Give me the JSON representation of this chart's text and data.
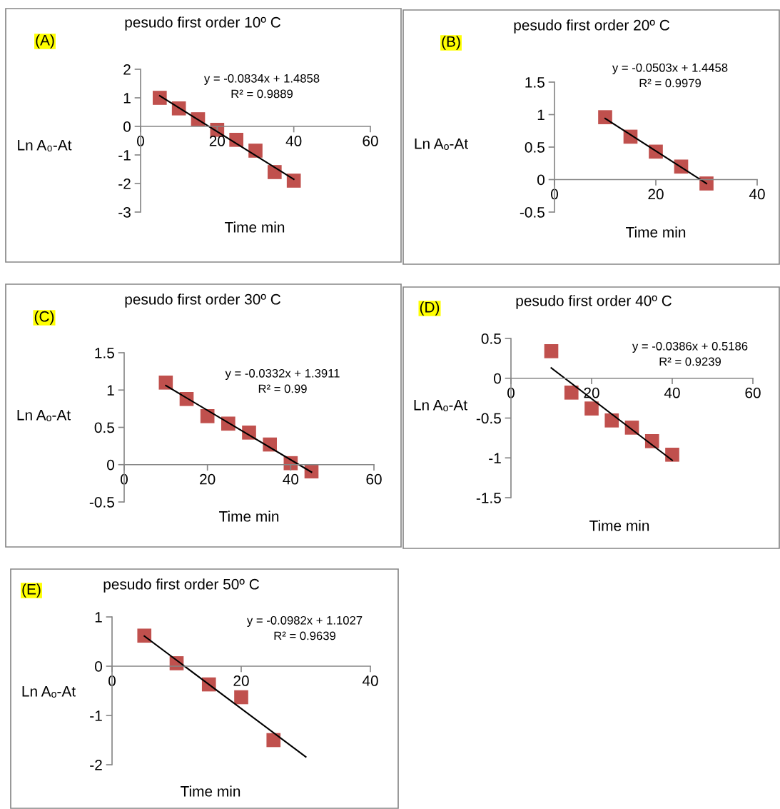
{
  "chart_data": [
    {
      "type": "scatter",
      "title": "pesudo first order 10º C",
      "xlabel": "Time min",
      "ylabel": "Ln A₀-At",
      "annotations": [
        "(A)",
        "y = -0.0834x + 1.4858\nR² = 0.9889"
      ],
      "xlim": [
        0,
        60
      ],
      "ylim": [
        -3,
        2
      ],
      "xticks": [
        0,
        20,
        40,
        60
      ],
      "yticks": [
        -3,
        -2,
        -1,
        0,
        1,
        2
      ],
      "grid": false,
      "series": [
        {
          "marker": "square",
          "color": "#c0504d",
          "x": [
            5,
            10,
            15,
            20,
            25,
            30,
            35,
            40
          ],
          "values": [
            1.0,
            0.63,
            0.25,
            -0.12,
            -0.47,
            -0.85,
            -1.6,
            -1.9
          ]
        },
        {
          "type": "line",
          "marker": "none",
          "color": "#000000",
          "x": [
            5,
            40
          ],
          "values": [
            1.07,
            -1.85
          ]
        }
      ]
    },
    {
      "type": "scatter",
      "title": "pesudo first order 20º C",
      "xlabel": "Time min",
      "ylabel": "Ln Aₒ-At",
      "annotations": [
        "(B)",
        "y = -0.0503x + 1.4458\nR² = 0.9979"
      ],
      "xlim": [
        0,
        40
      ],
      "ylim": [
        -0.5,
        1.5
      ],
      "xticks": [
        0,
        20,
        40
      ],
      "yticks": [
        -0.5,
        0,
        0.5,
        1,
        1.5
      ],
      "grid": false,
      "series": [
        {
          "marker": "square",
          "color": "#c0504d",
          "x": [
            10,
            15,
            20,
            25,
            30
          ],
          "values": [
            0.96,
            0.66,
            0.43,
            0.2,
            -0.06
          ]
        },
        {
          "type": "line",
          "marker": "none",
          "color": "#000000",
          "x": [
            10,
            30
          ],
          "values": [
            0.94,
            -0.06
          ]
        }
      ]
    },
    {
      "type": "scatter",
      "title": "pesudo first order 30º C",
      "xlabel": "Time min",
      "ylabel": "Ln Aₒ-At",
      "annotations": [
        "(C)",
        "y = -0.0332x + 1.3911\nR² = 0.99"
      ],
      "xlim": [
        0,
        60
      ],
      "ylim": [
        -0.5,
        1.5
      ],
      "xticks": [
        0,
        20,
        40,
        60
      ],
      "yticks": [
        -0.5,
        0,
        0.5,
        1,
        1.5
      ],
      "grid": false,
      "series": [
        {
          "marker": "square",
          "color": "#c0504d",
          "x": [
            10,
            15,
            20,
            25,
            30,
            35,
            40,
            45
          ],
          "values": [
            1.1,
            0.88,
            0.65,
            0.55,
            0.43,
            0.27,
            0.02,
            -0.09
          ]
        },
        {
          "type": "line",
          "marker": "none",
          "color": "#000000",
          "x": [
            10,
            45
          ],
          "values": [
            1.06,
            -0.1
          ]
        }
      ]
    },
    {
      "type": "scatter",
      "title": "pesudo first order 40º C",
      "xlabel": "Time min",
      "ylabel": "Ln Aₒ-At",
      "annotations": [
        "(D)",
        "y = -0.0386x + 0.5186\nR² = 0.9239"
      ],
      "xlim": [
        0,
        60
      ],
      "ylim": [
        -1.5,
        0.5
      ],
      "xticks": [
        0,
        20,
        40,
        60
      ],
      "yticks": [
        -1.5,
        -1,
        -0.5,
        0,
        0.5
      ],
      "grid": false,
      "series": [
        {
          "marker": "square",
          "color": "#c0504d",
          "x": [
            10,
            15,
            20,
            25,
            30,
            35,
            40
          ],
          "values": [
            0.34,
            -0.18,
            -0.38,
            -0.53,
            -0.62,
            -0.79,
            -0.96
          ]
        },
        {
          "type": "line",
          "marker": "none",
          "color": "#000000",
          "x": [
            10,
            40
          ],
          "values": [
            0.13,
            -1.03
          ]
        }
      ]
    },
    {
      "type": "scatter",
      "title": "pesudo first order 50º C",
      "xlabel": "Time min",
      "ylabel": "Ln Aₒ-At",
      "annotations": [
        "(E)",
        "y = -0.0982x + 1.1027\nR² = 0.9639"
      ],
      "xlim": [
        0,
        40
      ],
      "ylim": [
        -2,
        1
      ],
      "xticks": [
        0,
        20,
        40
      ],
      "yticks": [
        -2,
        -1,
        0,
        1
      ],
      "grid": false,
      "series": [
        {
          "marker": "square",
          "color": "#c0504d",
          "x": [
            5,
            10,
            15,
            20,
            25
          ],
          "values": [
            0.62,
            0.06,
            -0.37,
            -0.63,
            -1.5
          ]
        },
        {
          "type": "line",
          "marker": "none",
          "color": "#000000",
          "x": [
            5,
            30
          ],
          "values": [
            0.61,
            -1.84
          ]
        }
      ]
    }
  ]
}
